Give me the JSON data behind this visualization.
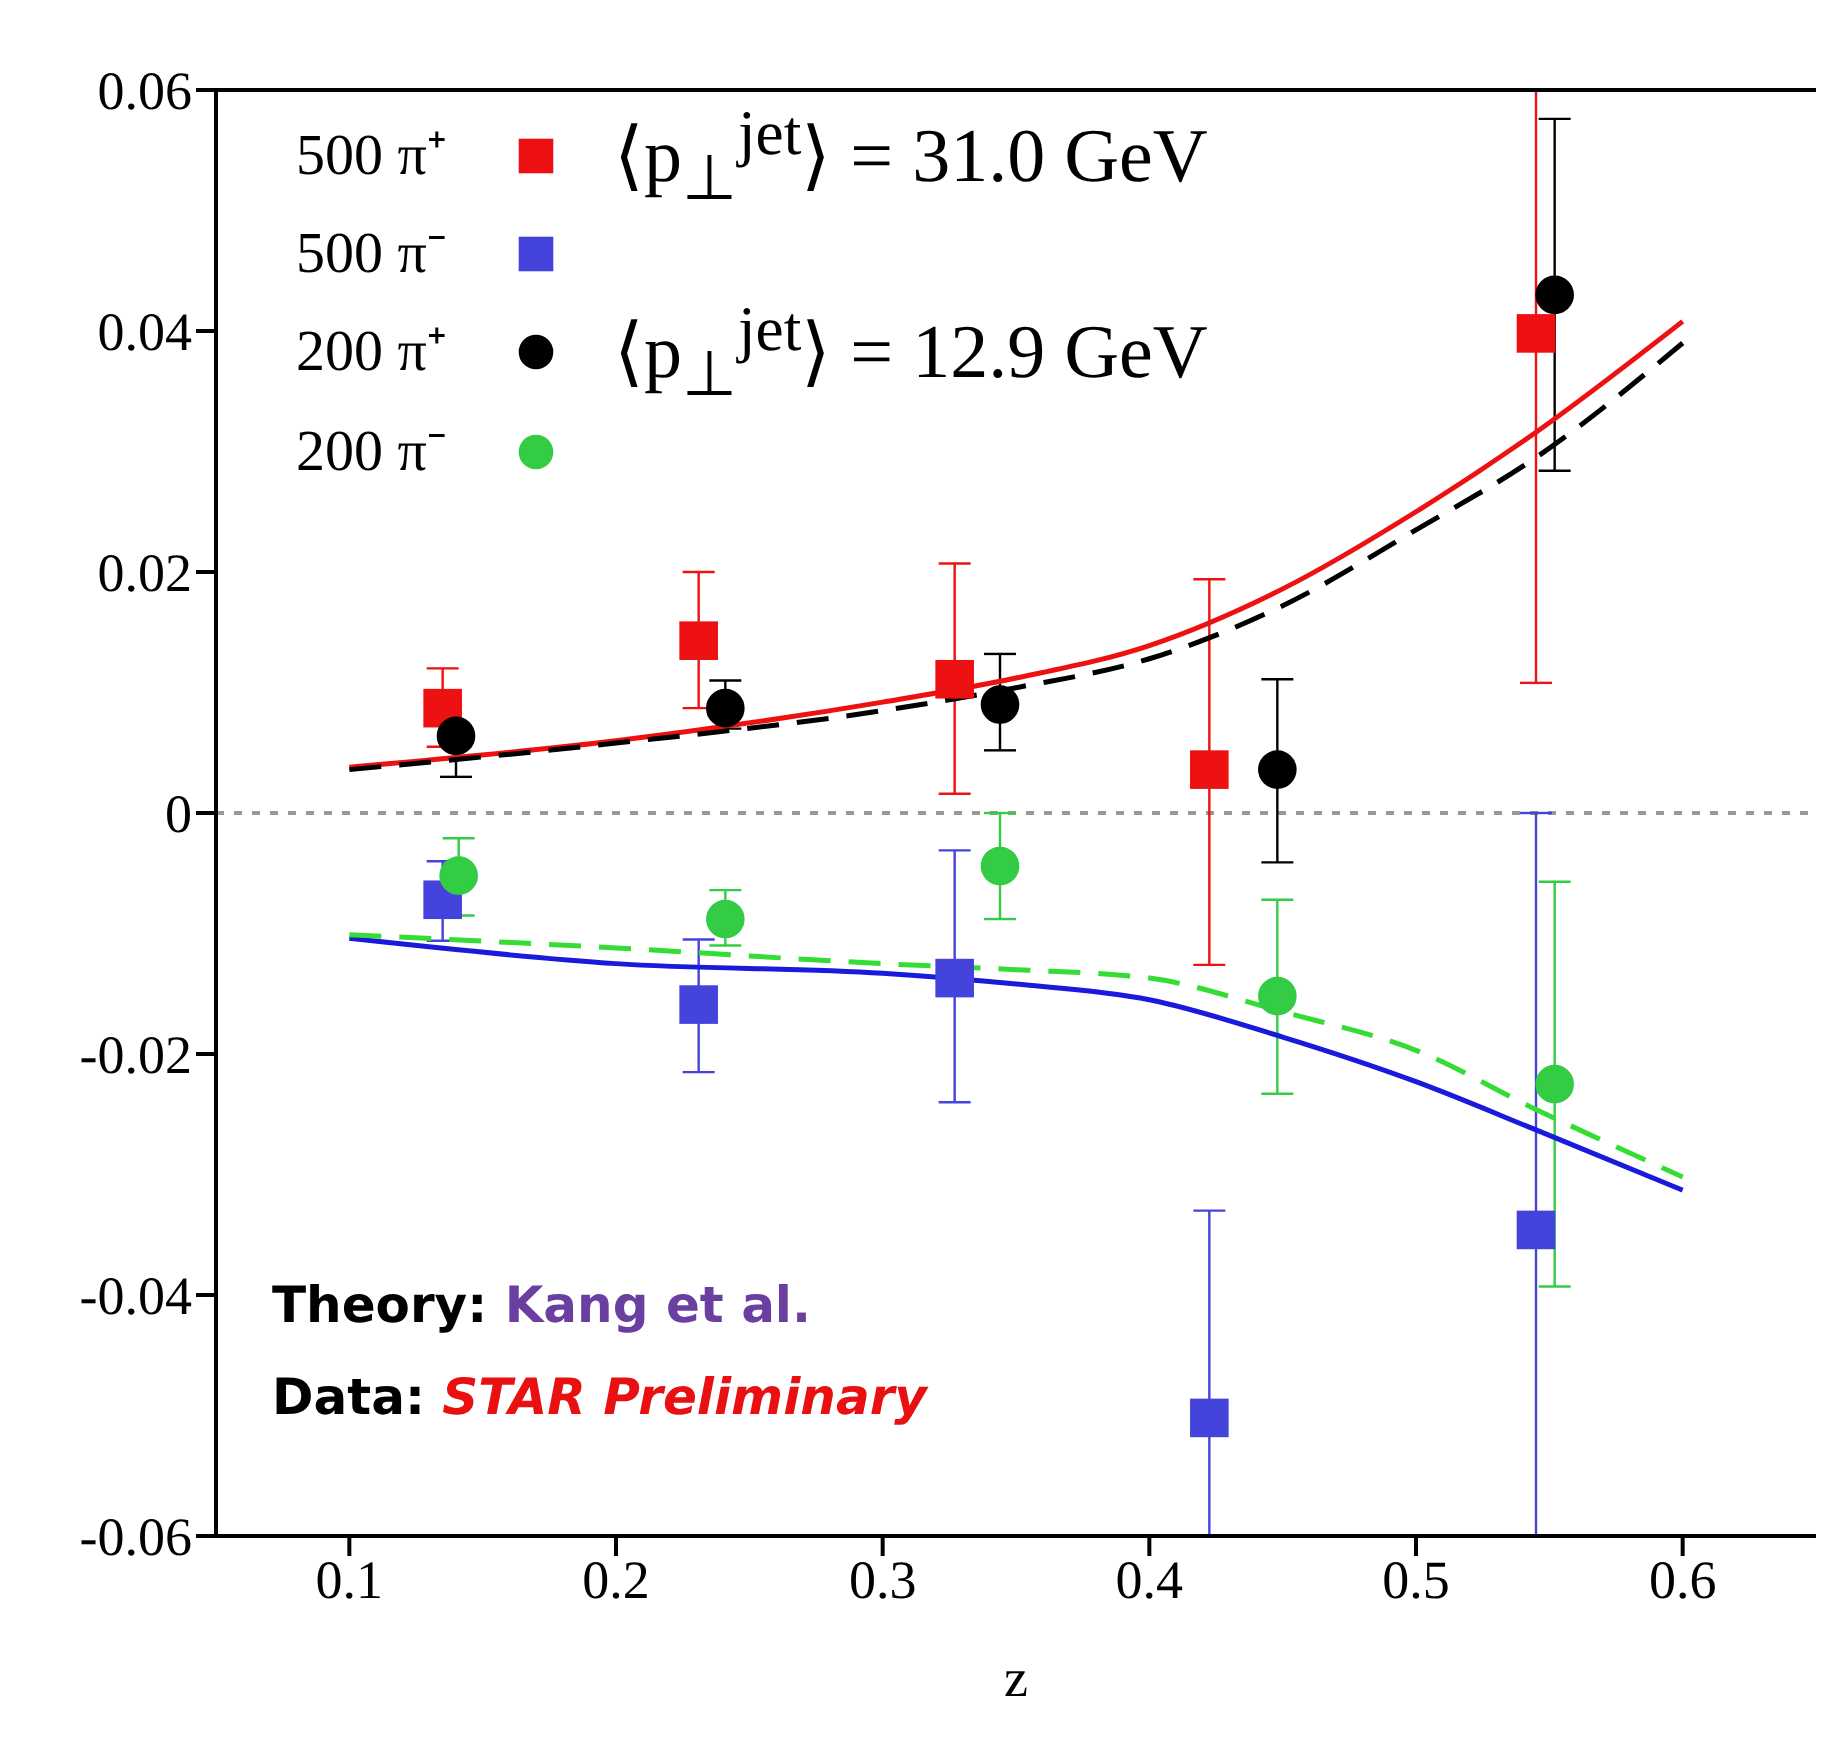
{
  "chart_data": {
    "type": "scatter",
    "xlabel": "z",
    "xlim": [
      0.05,
      0.65
    ],
    "xticks": [
      0.1,
      0.2,
      0.3,
      0.4,
      0.5,
      0.6
    ],
    "ylim": [
      -0.06,
      0.06
    ],
    "yticks": [
      0.06,
      0.04,
      0.02,
      0,
      -0.02,
      -0.04,
      -0.06
    ],
    "grid": false,
    "legend": "top left",
    "ref_lines": [
      {
        "axis": "y",
        "value": 0,
        "color": "#999999",
        "line_style": "dotted"
      }
    ],
    "annotations": [
      "⟨p$_{⊥}$$^{jet}$⟩ = 31.0 GeV",
      "⟨p$_{⊥}$$^{jet}$⟩ = 12.9 GeV",
      "Theory: Kang et al.",
      "Data: STAR Preliminary"
    ],
    "series": [
      {
        "name": "500 π⁺",
        "marker": "square",
        "color": "#ee1111",
        "x": [
          0.135,
          0.231,
          0.327,
          0.4225,
          0.545
        ],
        "values": [
          0.0087,
          0.0143,
          0.0111,
          0.0036,
          0.0398
        ],
        "errors": [
          [
            0.0055,
            0.012
          ],
          [
            0.0087,
            0.02
          ],
          [
            0.0016,
            0.0207
          ],
          [
            -0.0126,
            0.0194
          ],
          [
            0.0108,
            0.06
          ]
        ]
      },
      {
        "name": "500 π⁻",
        "marker": "square",
        "color": "#4444dd",
        "x": [
          0.135,
          0.231,
          0.327,
          0.4225,
          0.545
        ],
        "values": [
          -0.0072,
          -0.0159,
          -0.0137,
          -0.0502,
          -0.0346
        ],
        "errors": [
          [
            -0.0106,
            -0.004
          ],
          [
            -0.0215,
            -0.0105
          ],
          [
            -0.024,
            -0.0031
          ],
          [
            -0.06,
            -0.033
          ],
          [
            -0.06,
            0
          ]
        ]
      },
      {
        "name": "200 π⁺",
        "marker": "circle",
        "color": "#000000",
        "x": [
          0.14,
          0.241,
          0.344,
          0.448,
          0.552
        ],
        "values": [
          0.0064,
          0.0087,
          0.009,
          0.0036,
          0.043
        ],
        "errors": [
          [
            0.003,
            0.0064
          ],
          [
            0.007,
            0.011
          ],
          [
            0.0052,
            0.0132
          ],
          [
            -0.0041,
            0.0111
          ],
          [
            0.0284,
            0.0576
          ]
        ]
      },
      {
        "name": "200 π⁻",
        "marker": "circle",
        "color": "#33cc44",
        "x": [
          0.141,
          0.241,
          0.344,
          0.448,
          0.552
        ],
        "values": [
          -0.0052,
          -0.0088,
          -0.0044,
          -0.0152,
          -0.0225
        ],
        "errors": [
          [
            -0.0085,
            -0.0021
          ],
          [
            -0.011,
            -0.0064
          ],
          [
            -0.0088,
            0
          ],
          [
            -0.0233,
            -0.0072
          ],
          [
            -0.0393,
            -0.0057
          ]
        ]
      },
      {
        "type": "line",
        "color": "#ee1111",
        "line_style": "solid",
        "marker": "none",
        "x": [
          0.1,
          0.2,
          0.3,
          0.35,
          0.4,
          0.45,
          0.5,
          0.545,
          0.6
        ],
        "values": [
          0.0038,
          0.006,
          0.0092,
          0.0112,
          0.0139,
          0.0186,
          0.025,
          0.0316,
          0.0408
        ]
      },
      {
        "type": "line",
        "color": "#000000",
        "line_style": "dashed",
        "marker": "none",
        "x": [
          0.1,
          0.2,
          0.3,
          0.35,
          0.4,
          0.45,
          0.5,
          0.545,
          0.6
        ],
        "values": [
          0.0036,
          0.0058,
          0.0085,
          0.0104,
          0.0128,
          0.0172,
          0.0235,
          0.0295,
          0.039
        ]
      },
      {
        "type": "line",
        "color": "#1a1add",
        "line_style": "solid",
        "marker": "none",
        "x": [
          0.1,
          0.2,
          0.3,
          0.35,
          0.4,
          0.45,
          0.5,
          0.545,
          0.6
        ],
        "values": [
          -0.0104,
          -0.0125,
          -0.0133,
          -0.0142,
          -0.0155,
          -0.0186,
          -0.0223,
          -0.0263,
          -0.0313
        ]
      },
      {
        "type": "line",
        "color": "#33dd33",
        "line_style": "dashed",
        "marker": "none",
        "x": [
          0.1,
          0.2,
          0.3,
          0.35,
          0.4,
          0.45,
          0.5,
          0.545,
          0.6
        ],
        "values": [
          -0.0101,
          -0.0112,
          -0.0125,
          -0.013,
          -0.0137,
          -0.0165,
          -0.0197,
          -0.0246,
          -0.0302
        ]
      }
    ]
  }
}
